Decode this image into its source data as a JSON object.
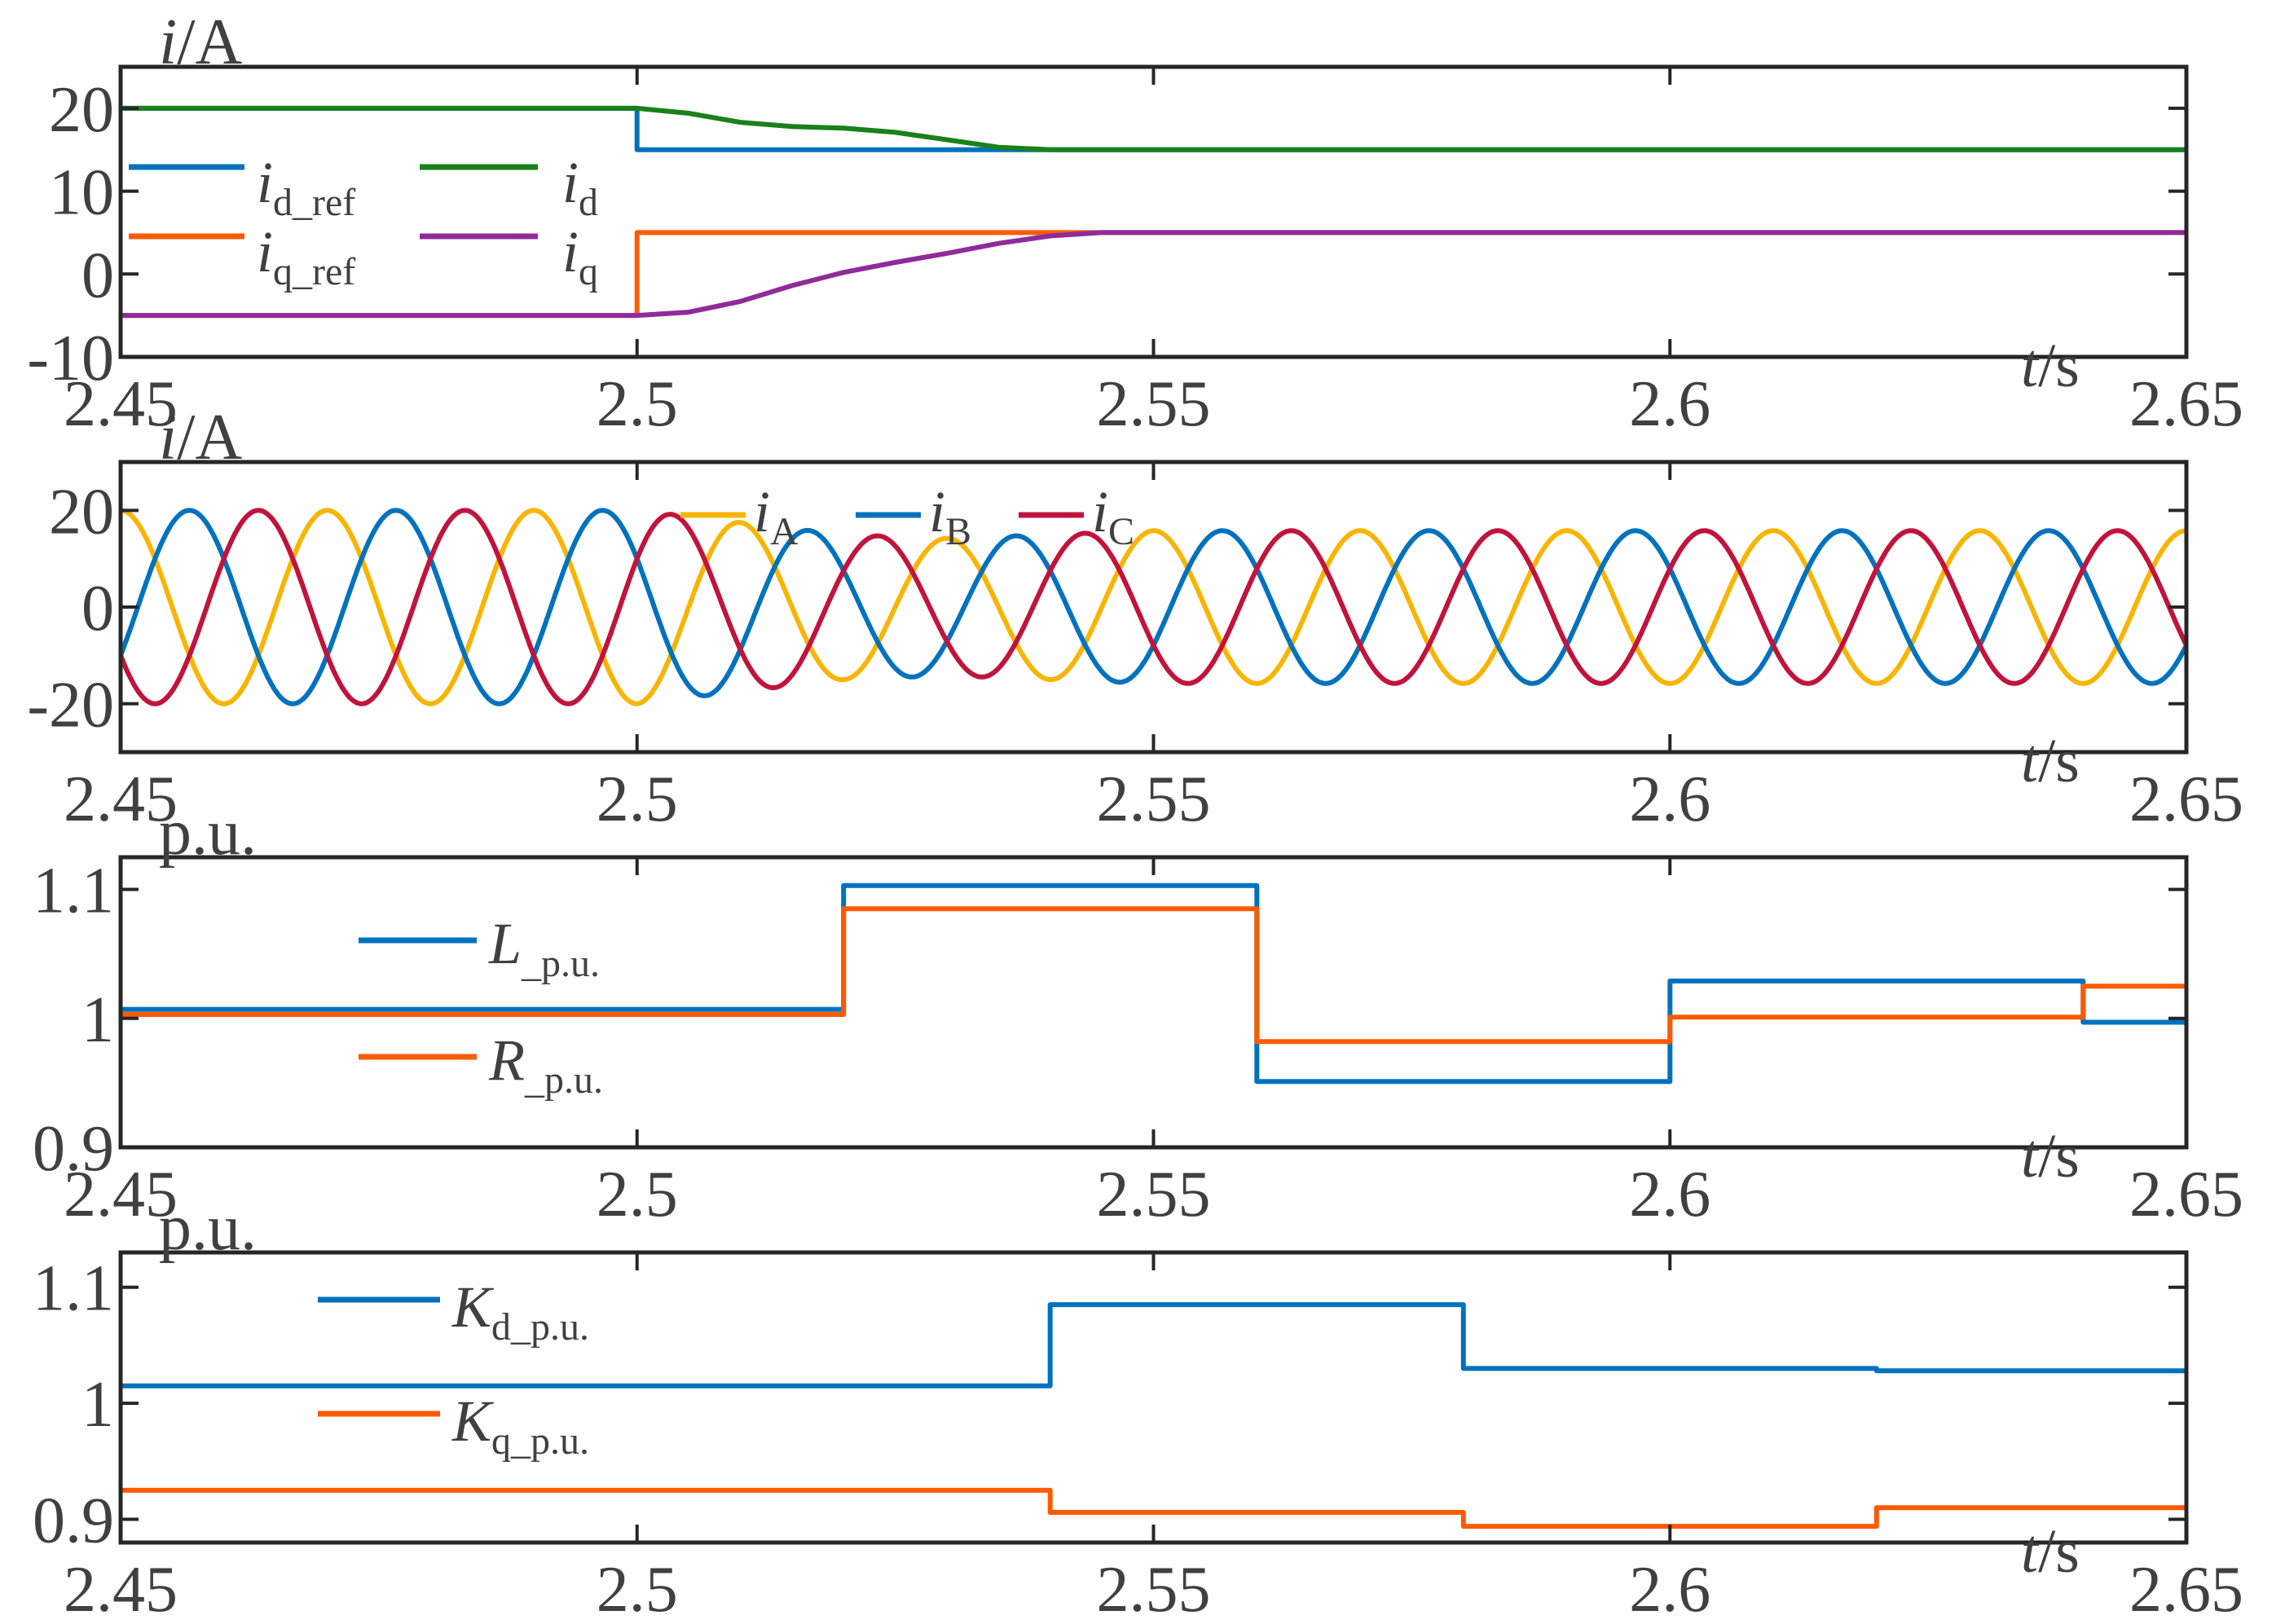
{
  "chart_data": [
    {
      "type": "line",
      "ylabel": {
        "italic": "i",
        "rest": "/A"
      },
      "xlabel": {
        "italic": "t",
        "rest": "/s"
      },
      "xlim": [
        2.45,
        2.65
      ],
      "ylim": [
        -10,
        25
      ],
      "xticks": [
        "2.45",
        "2.5",
        "2.55",
        "2.6",
        "2.65"
      ],
      "yticks": [
        {
          "value": 20,
          "label": "20"
        },
        {
          "value": 10,
          "label": "10"
        },
        {
          "value": 0,
          "label": "0"
        },
        {
          "value": -10,
          "label": "-10"
        }
      ],
      "legend_position": "left",
      "series": [
        {
          "key": "i_d_ref",
          "name": {
            "main": "i",
            "sub": "d_ref"
          },
          "color": "#0072BD",
          "points": [
            [
              2.45,
              20
            ],
            [
              2.5,
              20
            ],
            [
              2.5,
              15
            ],
            [
              2.65,
              15
            ]
          ]
        },
        {
          "key": "i_q_ref",
          "name": {
            "main": "i",
            "sub": "q_ref"
          },
          "color": "#FF5A00",
          "points": [
            [
              2.45,
              -5
            ],
            [
              2.5,
              -5
            ],
            [
              2.5,
              5
            ],
            [
              2.65,
              5
            ]
          ]
        },
        {
          "key": "i_d",
          "name": {
            "main": "i",
            "sub": "d"
          },
          "color": "#1A801A",
          "points": [
            [
              2.45,
              20
            ],
            [
              2.5,
              20
            ],
            [
              2.505,
              19.4
            ],
            [
              2.51,
              18.3
            ],
            [
              2.515,
              17.8
            ],
            [
              2.52,
              17.6
            ],
            [
              2.525,
              17.1
            ],
            [
              2.53,
              16.2
            ],
            [
              2.535,
              15.3
            ],
            [
              2.54,
              15.0
            ],
            [
              2.55,
              15.0
            ],
            [
              2.65,
              15.0
            ]
          ]
        },
        {
          "key": "i_q",
          "name": {
            "main": "i",
            "sub": "q"
          },
          "color": "#8E2C9A",
          "points": [
            [
              2.45,
              -5
            ],
            [
              2.5,
              -5
            ],
            [
              2.505,
              -4.6
            ],
            [
              2.51,
              -3.3
            ],
            [
              2.515,
              -1.4
            ],
            [
              2.52,
              0.2
            ],
            [
              2.525,
              1.4
            ],
            [
              2.53,
              2.5
            ],
            [
              2.535,
              3.7
            ],
            [
              2.54,
              4.6
            ],
            [
              2.545,
              5.0
            ],
            [
              2.65,
              5.0
            ]
          ]
        }
      ]
    },
    {
      "type": "line",
      "ylabel": {
        "italic": "i",
        "rest": "/A"
      },
      "xlabel": {
        "italic": "t",
        "rest": "/s"
      },
      "xlim": [
        2.45,
        2.65
      ],
      "ylim": [
        -30,
        30
      ],
      "xticks": [
        "2.45",
        "2.5",
        "2.55",
        "2.6",
        "2.65"
      ],
      "yticks": [
        {
          "value": 20,
          "label": "20"
        },
        {
          "value": 0,
          "label": "0"
        },
        {
          "value": -20,
          "label": "-20"
        }
      ],
      "legend_position": "top",
      "frequency_hz": 50,
      "series": [
        {
          "key": "i_A",
          "name": {
            "main": "i",
            "sub": "A"
          },
          "color": "#F7B500",
          "phase_deg": 0,
          "amplitude": [
            [
              2.45,
              20
            ],
            [
              2.5,
              20
            ],
            [
              2.51,
              17.5
            ],
            [
              2.52,
              15
            ],
            [
              2.53,
              14.2
            ],
            [
              2.54,
              15
            ],
            [
              2.55,
              15.8
            ],
            [
              2.56,
              15.8
            ],
            [
              2.57,
              15.8
            ],
            [
              2.58,
              15.8
            ],
            [
              2.59,
              15.8
            ],
            [
              2.6,
              15.8
            ],
            [
              2.61,
              15.8
            ],
            [
              2.62,
              15.8
            ],
            [
              2.63,
              15.8
            ],
            [
              2.64,
              15.8
            ],
            [
              2.65,
              15.8
            ]
          ]
        },
        {
          "key": "i_B",
          "name": {
            "main": "i",
            "sub": "B"
          },
          "color": "#0072BD",
          "phase_deg": -120,
          "amplitude": [
            [
              2.45,
              20
            ],
            [
              2.5,
              20
            ],
            [
              2.51,
              17.5
            ],
            [
              2.52,
              15
            ],
            [
              2.53,
              14.2
            ],
            [
              2.54,
              15
            ],
            [
              2.55,
              15.8
            ],
            [
              2.56,
              15.8
            ],
            [
              2.57,
              15.8
            ],
            [
              2.58,
              15.8
            ],
            [
              2.59,
              15.8
            ],
            [
              2.6,
              15.8
            ],
            [
              2.61,
              15.8
            ],
            [
              2.62,
              15.8
            ],
            [
              2.63,
              15.8
            ],
            [
              2.64,
              15.8
            ],
            [
              2.65,
              15.8
            ]
          ]
        },
        {
          "key": "i_C",
          "name": {
            "main": "i",
            "sub": "C"
          },
          "color": "#C0143C",
          "phase_deg": 120,
          "amplitude": [
            [
              2.45,
              20
            ],
            [
              2.5,
              20
            ],
            [
              2.51,
              17.5
            ],
            [
              2.52,
              15
            ],
            [
              2.53,
              14.2
            ],
            [
              2.54,
              15
            ],
            [
              2.55,
              15.8
            ],
            [
              2.56,
              15.8
            ],
            [
              2.57,
              15.8
            ],
            [
              2.58,
              15.8
            ],
            [
              2.59,
              15.8
            ],
            [
              2.6,
              15.8
            ],
            [
              2.61,
              15.8
            ],
            [
              2.62,
              15.8
            ],
            [
              2.63,
              15.8
            ],
            [
              2.64,
              15.8
            ],
            [
              2.65,
              15.8
            ]
          ]
        }
      ]
    },
    {
      "type": "line",
      "ylabel": {
        "italic": "",
        "rest": "p.u."
      },
      "xlabel": {
        "italic": "t",
        "rest": "/s"
      },
      "xlim": [
        2.45,
        2.65
      ],
      "ylim": [
        0.9,
        1.125
      ],
      "xticks": [
        "2.45",
        "2.5",
        "2.55",
        "2.6",
        "2.65"
      ],
      "yticks": [
        {
          "value": 1.1,
          "label": "1.1"
        },
        {
          "value": 1.0,
          "label": "1"
        },
        {
          "value": 0.9,
          "label": "0.9"
        }
      ],
      "legend_position": "left",
      "series": [
        {
          "key": "L_pu",
          "name": {
            "main": "L",
            "sub": "_p.u."
          },
          "color": "#0072BD",
          "points": [
            [
              2.45,
              1.007
            ],
            [
              2.52,
              1.007
            ],
            [
              2.52,
              1.103
            ],
            [
              2.56,
              1.103
            ],
            [
              2.56,
              0.951
            ],
            [
              2.6,
              0.951
            ],
            [
              2.6,
              1.029
            ],
            [
              2.64,
              1.029
            ],
            [
              2.64,
              0.997
            ],
            [
              2.65,
              0.997
            ]
          ]
        },
        {
          "key": "R_pu",
          "name": {
            "main": "R",
            "sub": "_p.u."
          },
          "color": "#FF5A00",
          "points": [
            [
              2.45,
              1.003
            ],
            [
              2.52,
              1.003
            ],
            [
              2.52,
              1.085
            ],
            [
              2.56,
              1.085
            ],
            [
              2.56,
              0.982
            ],
            [
              2.6,
              0.982
            ],
            [
              2.6,
              1.001
            ],
            [
              2.64,
              1.001
            ],
            [
              2.64,
              1.025
            ],
            [
              2.65,
              1.025
            ]
          ]
        }
      ]
    },
    {
      "type": "line",
      "ylabel": {
        "italic": "",
        "rest": "p.u."
      },
      "xlabel": {
        "italic": "t",
        "rest": "/s"
      },
      "xlim": [
        2.45,
        2.65
      ],
      "ylim": [
        0.88,
        1.13
      ],
      "xticks": [
        "2.45",
        "2.5",
        "2.55",
        "2.6",
        "2.65"
      ],
      "yticks": [
        {
          "value": 1.1,
          "label": "1.1"
        },
        {
          "value": 1.0,
          "label": "1"
        },
        {
          "value": 0.9,
          "label": "0.9"
        }
      ],
      "legend_position": "left",
      "series": [
        {
          "key": "K_d_pu",
          "name": {
            "main": "K",
            "sub": "d_p.u."
          },
          "color": "#0072BD",
          "points": [
            [
              2.45,
              1.015
            ],
            [
              2.54,
              1.015
            ],
            [
              2.54,
              1.085
            ],
            [
              2.58,
              1.085
            ],
            [
              2.58,
              1.03
            ],
            [
              2.62,
              1.03
            ],
            [
              2.62,
              1.028
            ],
            [
              2.65,
              1.028
            ]
          ]
        },
        {
          "key": "K_q_pu",
          "name": {
            "main": "K",
            "sub": "q_p.u."
          },
          "color": "#FF5A00",
          "points": [
            [
              2.45,
              0.925
            ],
            [
              2.54,
              0.925
            ],
            [
              2.54,
              0.906
            ],
            [
              2.58,
              0.906
            ],
            [
              2.58,
              0.894
            ],
            [
              2.62,
              0.894
            ],
            [
              2.62,
              0.91
            ],
            [
              2.65,
              0.91
            ]
          ]
        }
      ]
    }
  ]
}
